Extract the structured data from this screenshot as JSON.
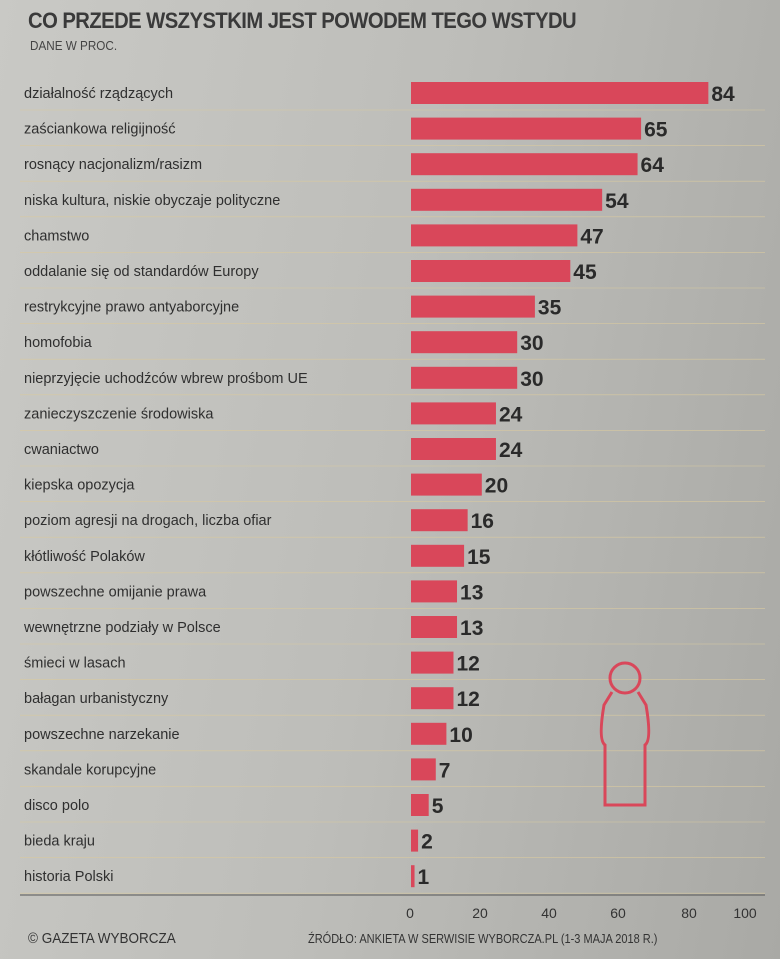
{
  "chart_data": {
    "type": "bar",
    "orientation": "horizontal",
    "title": "CO PRZEDE WSZYSTKIM JEST POWODEM TEGO WSTYDU",
    "subtitle": "DANE W PROC.",
    "categories": [
      "działalność rządzących",
      "zaściankowa religijność",
      "rosnący nacjonalizm/rasizm",
      "niska kultura, niskie obyczaje polityczne",
      "chamstwo",
      "oddalanie się od standardów Europy",
      "restrykcyjne prawo antyaborcyjne",
      "homofobia",
      "nieprzyjęcie uchodźców wbrew prośbom UE",
      "zanieczyszczenie środowiska",
      "cwaniactwo",
      "kiepska opozycja",
      "poziom agresji na drogach, liczba ofiar",
      "kłótliwość Polaków",
      "powszechne omijanie prawa",
      "wewnętrzne podziały w Polsce",
      "śmieci w lasach",
      "bałagan urbanistyczny",
      "powszechne narzekanie",
      "skandale korupcyjne",
      "disco polo",
      "bieda kraju",
      "historia Polski"
    ],
    "values": [
      84,
      65,
      64,
      54,
      47,
      45,
      35,
      30,
      30,
      24,
      24,
      20,
      16,
      15,
      13,
      13,
      12,
      12,
      10,
      7,
      5,
      2,
      1
    ],
    "xticks": [
      "0",
      "20",
      "40",
      "60",
      "80",
      "100"
    ],
    "xlim": [
      0,
      100
    ],
    "bar_color": "#d9475a",
    "grid": false
  },
  "footer": {
    "copyright": "© GAZETA WYBORCZA",
    "source": "ŹRÓDŁO: ANKIETA W SERWISIE WYBORCZA.PL (1-3 MAJA 2018 R.)"
  }
}
